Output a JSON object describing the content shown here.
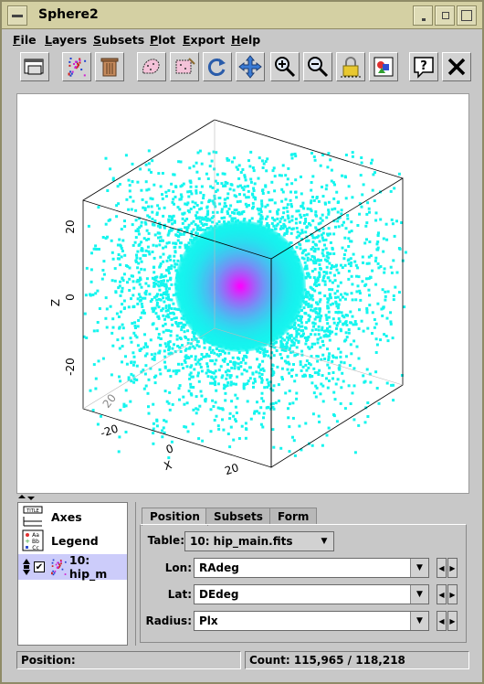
{
  "window": {
    "title": "Sphere2"
  },
  "menu": [
    {
      "label": "File",
      "mnemonic": "F",
      "rest": "ile"
    },
    {
      "label": "Layers",
      "mnemonic": "L",
      "rest": "ayers"
    },
    {
      "label": "Subsets",
      "mnemonic": "S",
      "rest": "ubsets"
    },
    {
      "label": "Plot",
      "mnemonic": "P",
      "rest": "lot"
    },
    {
      "label": "Export",
      "mnemonic": "E",
      "rest": "xport"
    },
    {
      "label": "Help",
      "mnemonic": "H",
      "rest": "elp"
    }
  ],
  "toolbar": {
    "icons": [
      "new-window-icon",
      "scatter-layer-icon",
      "delete-icon",
      "draw-subset-icon",
      "blob-subset-icon",
      "rescale-icon",
      "navigate-icon",
      "zoom-in-icon",
      "zoom-out-icon",
      "lock-icon",
      "export-image-icon",
      "help-icon",
      "close-icon"
    ]
  },
  "plot": {
    "axes": {
      "x": "X",
      "z": "Z"
    },
    "ticks": {
      "z_top": "20",
      "z_mid": "0",
      "z_bot": "-20",
      "x_left": "-20",
      "x_mid": "0",
      "x_right": "20",
      "y_left": "20"
    },
    "colors": {
      "outer": "#14f5ee",
      "inner": "#ff00ff"
    }
  },
  "layers": {
    "items": [
      {
        "label": "Axes",
        "icon": "axes-icon"
      },
      {
        "label": "Legend",
        "icon": "legend-icon"
      },
      {
        "label": "10: hip_m",
        "icon": "scatter-layer-icon",
        "checked": true
      }
    ]
  },
  "tabs": [
    "Position",
    "Subsets",
    "Form"
  ],
  "position": {
    "table_label": "Table:",
    "table_value": "10: hip_main.fits",
    "lon_label": "Lon:",
    "lon_value": "RAdeg",
    "lat_label": "Lat:",
    "lat_value": "DEdeg",
    "radius_label": "Radius:",
    "radius_value": "Plx"
  },
  "status": {
    "position": "Position:",
    "count": "Count: 115,965 / 118,218"
  }
}
